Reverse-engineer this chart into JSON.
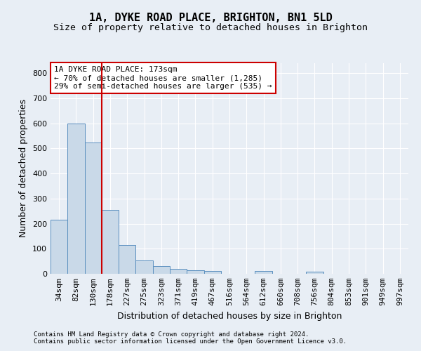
{
  "title": "1A, DYKE ROAD PLACE, BRIGHTON, BN1 5LD",
  "subtitle": "Size of property relative to detached houses in Brighton",
  "xlabel": "Distribution of detached houses by size in Brighton",
  "ylabel": "Number of detached properties",
  "footnote1": "Contains HM Land Registry data © Crown copyright and database right 2024.",
  "footnote2": "Contains public sector information licensed under the Open Government Licence v3.0.",
  "categories": [
    "34sqm",
    "82sqm",
    "130sqm",
    "178sqm",
    "227sqm",
    "275sqm",
    "323sqm",
    "371sqm",
    "419sqm",
    "467sqm",
    "516sqm",
    "564sqm",
    "612sqm",
    "660sqm",
    "708sqm",
    "756sqm",
    "804sqm",
    "853sqm",
    "901sqm",
    "949sqm",
    "997sqm"
  ],
  "values": [
    215,
    600,
    525,
    255,
    115,
    52,
    30,
    20,
    15,
    10,
    0,
    0,
    10,
    0,
    0,
    8,
    0,
    0,
    0,
    0,
    0
  ],
  "bar_color": "#c9d9e8",
  "bar_edge_color": "#5a8fbf",
  "vline_x": 2.5,
  "vline_color": "#cc0000",
  "annotation_text": "1A DYKE ROAD PLACE: 173sqm\n← 70% of detached houses are smaller (1,285)\n29% of semi-detached houses are larger (535) →",
  "annotation_box_color": "#ffffff",
  "annotation_box_edge": "#cc0000",
  "ylim": [
    0,
    840
  ],
  "yticks": [
    0,
    100,
    200,
    300,
    400,
    500,
    600,
    700,
    800
  ],
  "background_color": "#e8eef5",
  "grid_color": "#ffffff",
  "title_fontsize": 11,
  "subtitle_fontsize": 9.5,
  "axis_label_fontsize": 9,
  "tick_fontsize": 8,
  "annotation_fontsize": 8,
  "footnote_fontsize": 6.5
}
